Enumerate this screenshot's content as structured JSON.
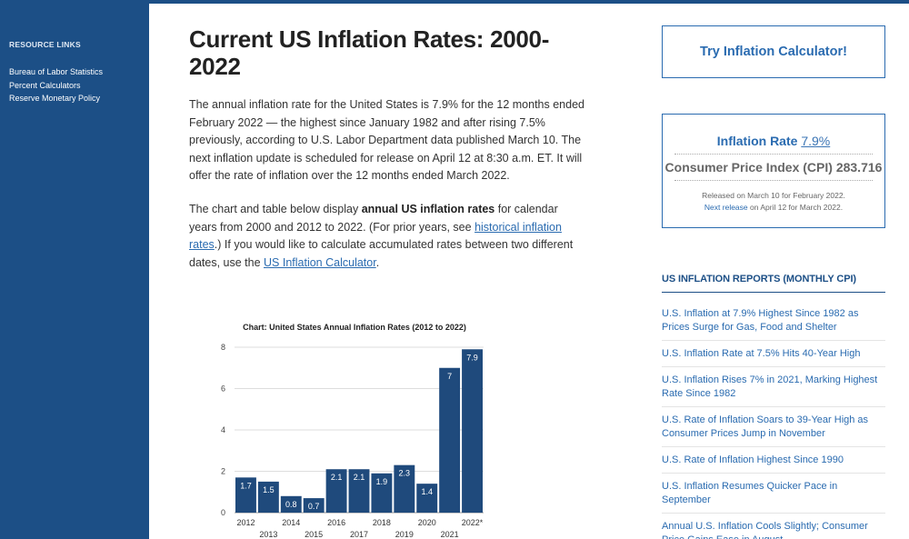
{
  "sidebar": {
    "heading": "RESOURCE LINKS",
    "links": [
      "Bureau of Labor Statistics",
      "Percent Calculators",
      "Reserve Monetary Policy"
    ]
  },
  "article": {
    "title": "Current US Inflation Rates: 2000-2022",
    "p1": "The annual inflation rate for the United States is 7.9% for the 12 months ended February 2022 — the highest since January 1982 and after rising 7.5% previously, according to U.S. Labor Department data published March 10. The next inflation update is scheduled for release on April 12 at 8:30 a.m. ET. It will offer the rate of inflation over the 12 months ended March 2022.",
    "p2_a": "The chart and table below display ",
    "p2_bold": "annual US inflation rates",
    "p2_b": " for calendar years from 2000 and 2012 to 2022. (For prior years, see ",
    "p2_link1": "historical inflation rates",
    "p2_c": ".) If you would like to calculate accumulated rates between two different dates, use the ",
    "p2_link2": "US Inflation Calculator",
    "p2_d": "."
  },
  "right": {
    "cta": "Try Inflation Calculator!",
    "rate_label": "Inflation Rate",
    "rate_value": "7.9%",
    "cpi_label": "Consumer Price Index (CPI)",
    "cpi_value": "283.716",
    "released": "Released on March 10 for February 2022.",
    "next_link": "Next release",
    "next_rest": " on April 12 for March 2022.",
    "reports_heading": "US INFLATION REPORTS (MONTHLY CPI)",
    "reports": [
      "U.S. Inflation at 7.9% Highest Since 1982 as Prices Surge for Gas, Food and Shelter",
      "U.S. Inflation Rate at 7.5% Hits 40-Year High",
      "U.S. Inflation Rises 7% in 2021, Marking Highest Rate Since 1982",
      "U.S. Rate of Inflation Soars to 39-Year High as Consumer Prices Jump in November",
      "U.S. Rate of Inflation Highest Since 1990",
      "U.S. Inflation Resumes Quicker Pace in September",
      "Annual U.S. Inflation Cools Slightly; Consumer Price Gains Ease in August"
    ]
  },
  "colors": {
    "brand": "#1c4f86",
    "link": "#2a6bb0",
    "bar": "#1f4a7c"
  },
  "chart_data": {
    "type": "bar",
    "title": "Chart: United States Annual Inflation Rates (2012 to 2022)",
    "categories": [
      "2012",
      "2013",
      "2014",
      "2015",
      "2016",
      "2017",
      "2018",
      "2019",
      "2020",
      "2021",
      "2022*"
    ],
    "values": [
      1.7,
      1.5,
      0.8,
      0.7,
      2.1,
      2.1,
      1.9,
      2.3,
      1.4,
      7,
      7.9
    ],
    "value_labels": [
      "1.7",
      "1.5",
      "0.8",
      "0.7",
      "2.1",
      "2.1",
      "1.9",
      "2.3",
      "1.4",
      "7",
      "7.9"
    ],
    "yticks": [
      "0",
      "2",
      "4",
      "6",
      "8"
    ],
    "ylim": [
      0,
      8
    ],
    "grid": true
  }
}
